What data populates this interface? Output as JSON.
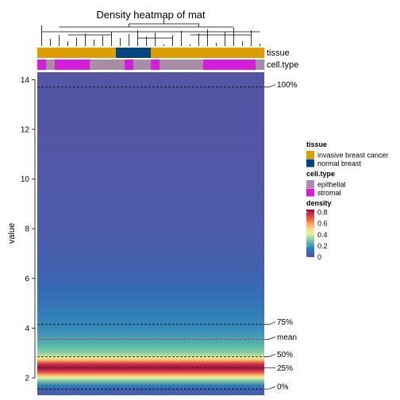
{
  "chart_data": {
    "type": "heatmap",
    "title": "Density heatmap of mat",
    "ylabel": "value",
    "ylim": [
      1.3,
      14.3
    ],
    "y_ticks": [
      2,
      4,
      6,
      8,
      10,
      12,
      14
    ],
    "columns": 26,
    "annotations": [
      {
        "name": "tissue",
        "legend_title": "tissue",
        "levels": [
          {
            "label": "invasive breast cancer",
            "color": "#DE9E00"
          },
          {
            "label": "normal breast",
            "color": "#00467F"
          }
        ],
        "runs": [
          [
            0,
            9
          ],
          [
            1,
            4
          ],
          [
            0,
            13
          ]
        ]
      },
      {
        "name": "cell.type",
        "legend_title": "cell.type",
        "levels": [
          {
            "label": "epithelial",
            "color": "#A98CA5"
          },
          {
            "label": "stromal",
            "color": "#D61DDB"
          }
        ],
        "runs": [
          [
            1,
            1
          ],
          [
            0,
            1
          ],
          [
            1,
            4
          ],
          [
            0,
            4
          ],
          [
            1,
            1
          ],
          [
            0,
            2
          ],
          [
            1,
            1
          ],
          [
            0,
            5
          ],
          [
            1,
            6
          ],
          [
            0,
            1
          ]
        ]
      }
    ],
    "density_legend": {
      "title": "density",
      "ticks": [
        0,
        0.2,
        0.4,
        0.6,
        0.8
      ],
      "range": [
        0,
        0.85
      ]
    },
    "density_profile": [
      [
        1.3,
        0.04
      ],
      [
        1.5,
        0.07
      ],
      [
        1.7,
        0.15
      ],
      [
        1.9,
        0.32
      ],
      [
        2.0,
        0.42
      ],
      [
        2.1,
        0.55
      ],
      [
        2.2,
        0.68
      ],
      [
        2.3,
        0.78
      ],
      [
        2.4,
        0.82
      ],
      [
        2.5,
        0.8
      ],
      [
        2.6,
        0.72
      ],
      [
        2.7,
        0.58
      ],
      [
        2.8,
        0.45
      ],
      [
        2.9,
        0.37
      ],
      [
        3.0,
        0.32
      ],
      [
        3.2,
        0.27
      ],
      [
        3.5,
        0.23
      ],
      [
        4.0,
        0.19
      ],
      [
        4.5,
        0.16
      ],
      [
        5.0,
        0.12
      ],
      [
        5.5,
        0.09
      ],
      [
        6.0,
        0.07
      ],
      [
        7.0,
        0.05
      ],
      [
        8.0,
        0.04
      ],
      [
        10.0,
        0.03
      ],
      [
        12.0,
        0.02
      ],
      [
        14.3,
        0.02
      ]
    ],
    "reference_lines": [
      {
        "label": "100%",
        "value": 13.7,
        "color": "#000000"
      },
      {
        "label": "75%",
        "value": 4.15,
        "color": "#000000"
      },
      {
        "label": "mean",
        "value": 3.55,
        "color": "#C0392B"
      },
      {
        "label": "50%",
        "value": 2.85,
        "color": "#000000"
      },
      {
        "label": "25%",
        "value": 2.4,
        "color": "#000000"
      },
      {
        "label": "0%",
        "value": 1.55,
        "color": "#000000"
      }
    ]
  }
}
